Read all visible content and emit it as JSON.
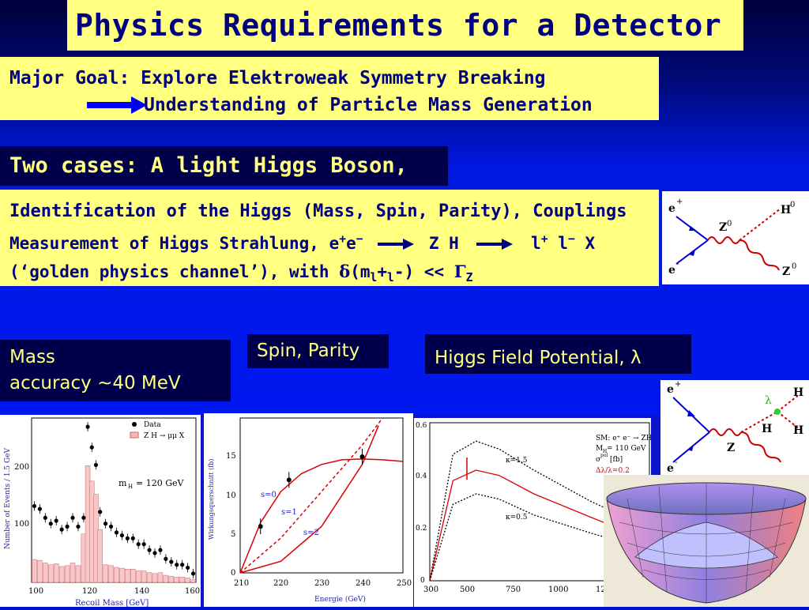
{
  "title": "Physics Requirements for a Detector",
  "goal": {
    "line1": "Major Goal: Explore Elektroweak Symmetry Breaking",
    "line2": "Understanding of Particle Mass Generation"
  },
  "cases": "Two cases: A light Higgs Boson,",
  "ident": {
    "line1": "Identification of the Higgs (Mass, Spin, Parity), Couplings",
    "line2_a": "Measurement of Higgs Strahlung, e",
    "line2_b": "e",
    "line2_zh": "Z H",
    "line2_l1": "l",
    "line2_l2": "l",
    "line2_x": "X",
    "line3_a": "(‘golden physics channel’), with ",
    "line3_b": "(m",
    "line3_c": "l",
    "line3_d": "+",
    "line3_e": "l",
    "line3_f": "-) << ",
    "line3_g": "Z"
  },
  "mass": {
    "line1": "Mass",
    "line2": "accuracy ~40 MeV"
  },
  "spin": "Spin, Parity",
  "field": "Higgs Field Potential, λ",
  "feyn1": {
    "ep": "e",
    "em": "e",
    "z": "Z",
    "h": "H",
    "z2": "Z"
  },
  "feyn2": {
    "ep": "e",
    "em": "e",
    "z": "Z",
    "h": "H",
    "lambda": "λ",
    "h1": "H",
    "h2": "H"
  },
  "plot1": {
    "ylabel": "Number of Events / 1.5 GeV",
    "xlabel": "Recoil Mass  [GeV]",
    "legend_data": "Data",
    "legend_mc": "Z H → μμ X",
    "mh": "m",
    "mh_sub": "H",
    "mh_val": "= 120  GeV",
    "xticks": [
      "100",
      "120",
      "140",
      "160"
    ],
    "yticks": [
      "100",
      "200"
    ]
  },
  "plot2": {
    "ylabel": "Wirkungsquerschnitt (fb)",
    "xlabel": "Energie (GeV)",
    "xticks": [
      "210",
      "220",
      "230",
      "240",
      "250"
    ],
    "yticks": [
      "0",
      "5",
      "10",
      "15"
    ],
    "s0": "s=0",
    "s1": "s=1",
    "s2": "s=2"
  },
  "plot3": {
    "xticks": [
      "300",
      "500",
      "750",
      "1000",
      "12"
    ],
    "yticks": [
      "0.6",
      "0.4",
      "0.2",
      "0"
    ],
    "k15": "κ=1.5",
    "k05": "κ=0.5",
    "leg1": "SM: e⁺ e⁻ → ZHH",
    "leg2": "M",
    "leg2_sub": "H",
    "leg2_val": " = 110 GeV",
    "leg3": "σ",
    "leg3_sup": "pol",
    "leg3_val": " [fb]",
    "leg4": "Δλ/λ=0.2"
  },
  "chart_data": [
    {
      "type": "bar",
      "xlabel": "Recoil Mass  [GeV]",
      "ylabel": "Number of Events / 1.5 GeV",
      "series": [
        {
          "name": "Data",
          "x": [
            101,
            103,
            105,
            107,
            109,
            111,
            113,
            115,
            117,
            119,
            120.5,
            122,
            123.5,
            125,
            127,
            129,
            131,
            133,
            135,
            137,
            139,
            141,
            143,
            145,
            147,
            149,
            151,
            153,
            155,
            157,
            159
          ],
          "y": [
            130,
            125,
            110,
            100,
            105,
            90,
            95,
            110,
            95,
            110,
            265,
            230,
            200,
            120,
            100,
            95,
            85,
            80,
            75,
            75,
            65,
            65,
            55,
            50,
            55,
            40,
            35,
            30,
            30,
            25,
            15
          ]
        }
      ],
      "xlim": [
        100,
        160
      ],
      "ylim": [
        0,
        280
      ]
    },
    {
      "type": "line",
      "xlabel": "Energie (GeV)",
      "ylabel": "Wirkungsquerschnitt (fb)",
      "series": [
        {
          "name": "s=0",
          "x": [
            210,
            215,
            220,
            225,
            230,
            235,
            240,
            245,
            250
          ],
          "y": [
            0,
            6.5,
            10.5,
            12.8,
            14.0,
            14.6,
            14.7,
            14.6,
            14.4
          ]
        },
        {
          "name": "s=1",
          "x": [
            210,
            220,
            230,
            240,
            245
          ],
          "y": [
            0,
            4.5,
            10.5,
            16.5,
            20
          ]
        },
        {
          "name": "s=2",
          "x": [
            210,
            220,
            230,
            240,
            244
          ],
          "y": [
            0,
            1.5,
            6,
            14,
            19
          ]
        }
      ],
      "points": [
        {
          "x": 215,
          "y": 6
        },
        {
          "x": 222,
          "y": 12
        },
        {
          "x": 240,
          "y": 15
        }
      ],
      "xlim": [
        210,
        250
      ],
      "ylim": [
        0,
        20
      ]
    },
    {
      "type": "line",
      "series": [
        {
          "name": "κ=1.5",
          "x": [
            300,
            400,
            500,
            600,
            750,
            1000,
            1200
          ],
          "y": [
            0,
            0.48,
            0.53,
            0.5,
            0.42,
            0.3,
            0.22
          ]
        },
        {
          "name": "",
          "x": [
            300,
            400,
            500,
            600,
            750,
            1000,
            1200
          ],
          "y": [
            0,
            0.38,
            0.42,
            0.4,
            0.33,
            0.24,
            0.17
          ]
        },
        {
          "name": "κ=0.5",
          "x": [
            300,
            400,
            500,
            600,
            750,
            1000,
            1200
          ],
          "y": [
            0,
            0.29,
            0.33,
            0.31,
            0.25,
            0.18,
            0.13
          ]
        }
      ],
      "xlim": [
        300,
        1250
      ],
      "ylim": [
        0,
        0.6
      ]
    }
  ]
}
